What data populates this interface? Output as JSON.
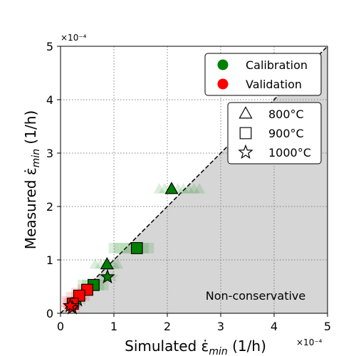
{
  "chart_data": {
    "type": "scatter",
    "xlabel": "Simulated ε̇",
    "xlabel_sub": "min",
    "xlabel_unit": " (1/h)",
    "ylabel": "Measured ε̇",
    "ylabel_sub": "min",
    "ylabel_unit": " (1/h)",
    "x_exponent": "×10⁻⁴",
    "y_exponent": "×10⁻⁴",
    "xlim": [
      0,
      5
    ],
    "ylim": [
      0,
      5
    ],
    "xticks": [
      "0",
      "1",
      "2",
      "3",
      "4",
      "5"
    ],
    "yticks": [
      "0",
      "1",
      "2",
      "3",
      "4",
      "5"
    ],
    "grid": true,
    "region_annotation": "Non-conservative",
    "colors": {
      "calibration": "#008000",
      "validation": "#ff0000",
      "region": "#d6d6d6",
      "grid": "#808080"
    },
    "legend_sets": [
      {
        "placement": "top-right",
        "entries": [
          {
            "label": "Calibration",
            "marker": "circle",
            "color": "#008000"
          },
          {
            "label": "Validation",
            "marker": "circle",
            "color": "#ff0000"
          }
        ]
      },
      {
        "placement": "upper-right",
        "entries": [
          {
            "label": "800°C",
            "marker": "triangle"
          },
          {
            "label": "900°C",
            "marker": "square"
          },
          {
            "label": "1000°C",
            "marker": "star"
          }
        ]
      }
    ],
    "series": [
      {
        "group": "calibration",
        "temperature": "800°C",
        "marker": "triangle",
        "main": [
          [
            2.08,
            2.32
          ],
          [
            0.87,
            0.91
          ]
        ],
        "spread": [
          [
            1.85,
            2.32
          ],
          [
            1.95,
            2.32
          ],
          [
            2.2,
            2.32
          ],
          [
            2.3,
            2.32
          ],
          [
            2.4,
            2.32
          ],
          [
            2.5,
            2.32
          ],
          [
            2.6,
            2.32
          ],
          [
            0.65,
            0.91
          ],
          [
            0.75,
            0.91
          ],
          [
            1.0,
            0.91
          ],
          [
            1.07,
            0.91
          ]
        ]
      },
      {
        "group": "calibration",
        "temperature": "900°C",
        "marker": "square",
        "main": [
          [
            1.43,
            1.22
          ],
          [
            0.62,
            0.53
          ]
        ],
        "spread": [
          [
            1.0,
            1.22
          ],
          [
            1.1,
            1.22
          ],
          [
            1.2,
            1.22
          ],
          [
            1.3,
            1.22
          ],
          [
            1.55,
            1.22
          ],
          [
            1.65,
            1.22
          ],
          [
            0.42,
            0.53
          ],
          [
            0.5,
            0.53
          ],
          [
            0.72,
            0.53
          ],
          [
            0.8,
            0.53
          ]
        ]
      },
      {
        "group": "calibration",
        "temperature": "1000°C",
        "marker": "star",
        "main": [
          [
            0.88,
            0.68
          ],
          [
            0.32,
            0.25
          ]
        ],
        "spread": [
          [
            0.78,
            0.68
          ],
          [
            0.98,
            0.68
          ],
          [
            0.25,
            0.25
          ],
          [
            0.4,
            0.25
          ]
        ]
      },
      {
        "group": "validation",
        "temperature": "900°C",
        "marker": "square",
        "main": [
          [
            0.5,
            0.44
          ],
          [
            0.35,
            0.33
          ],
          [
            0.23,
            0.18
          ]
        ],
        "spread": [
          [
            0.12,
            0.22
          ],
          [
            0.2,
            0.3
          ],
          [
            0.3,
            0.38
          ],
          [
            0.42,
            0.44
          ],
          [
            0.45,
            0.33
          ],
          [
            0.15,
            0.18
          ]
        ]
      },
      {
        "group": "validation",
        "temperature": "1000°C",
        "marker": "star",
        "main": [
          [
            0.22,
            0.1
          ],
          [
            0.18,
            0.14
          ]
        ],
        "spread": [
          [
            0.12,
            0.1
          ],
          [
            0.3,
            0.1
          ]
        ]
      }
    ]
  }
}
